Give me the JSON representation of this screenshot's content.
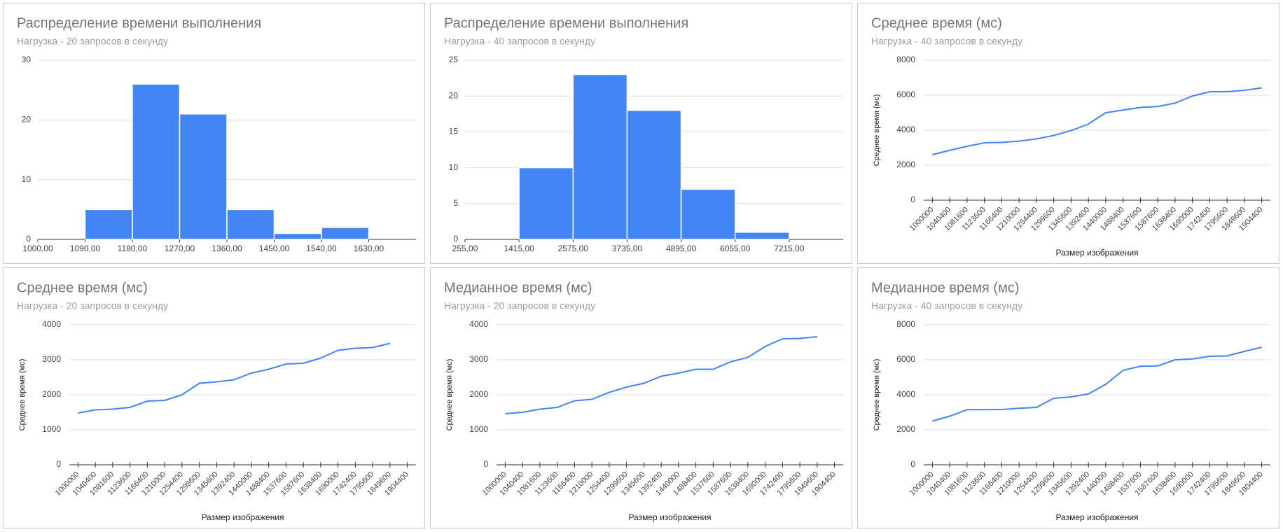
{
  "chart_data": [
    {
      "type": "histogram",
      "title": "Распределение времени выполнения",
      "subtitle": "Нагрузка - 20 запросов в секунду",
      "bins": [
        1090,
        1180,
        1270,
        1360,
        1450,
        1540,
        1630
      ],
      "counts": [
        5,
        26,
        21,
        5,
        1,
        2
      ],
      "color": "#4285f4",
      "xlim": [
        1000,
        1720
      ],
      "xticks": [
        {
          "value": 1000,
          "label": "1000,00"
        },
        {
          "value": 1090,
          "label": "1090,00"
        },
        {
          "value": 1180,
          "label": "1180,00"
        },
        {
          "value": 1270,
          "label": "1270,00"
        },
        {
          "value": 1360,
          "label": "1360,00"
        },
        {
          "value": 1450,
          "label": "1450,00"
        },
        {
          "value": 1540,
          "label": "1540,00"
        },
        {
          "value": 1630,
          "label": "1630,00"
        }
      ],
      "ylim": [
        0,
        30
      ],
      "yticks": [
        0,
        10,
        20,
        30
      ],
      "grid": true
    },
    {
      "type": "histogram",
      "title": "Распределение времени выполнения",
      "subtitle": "Нагрузка - 40 запросов в секунду",
      "bins": [
        1415,
        2575,
        3735,
        4895,
        6055,
        7215
      ],
      "counts": [
        10,
        23,
        18,
        7,
        1
      ],
      "color": "#4285f4",
      "xlim": [
        255,
        8375
      ],
      "xticks": [
        {
          "value": 255,
          "label": "255,00"
        },
        {
          "value": 1415,
          "label": "1415,00"
        },
        {
          "value": 2575,
          "label": "2575,00"
        },
        {
          "value": 3735,
          "label": "3735,00"
        },
        {
          "value": 4895,
          "label": "4895,00"
        },
        {
          "value": 6055,
          "label": "6055,00"
        },
        {
          "value": 7215,
          "label": "7215,00"
        }
      ],
      "ylim": [
        0,
        25
      ],
      "yticks": [
        0,
        5,
        10,
        15,
        20,
        25
      ],
      "grid": true
    },
    {
      "type": "line",
      "title": "Среднее время (мс)",
      "subtitle": "Нагрузка - 40 запросов в секунду",
      "y_label": "Среднее время (мс)",
      "x_label": "Размер изображения",
      "categories": [
        "1000000",
        "1040400",
        "1081600",
        "1123600",
        "1166400",
        "1210000",
        "1254400",
        "1299600",
        "1345600",
        "1392400",
        "1440000",
        "1488400",
        "1537600",
        "1587600",
        "1638400",
        "1690000",
        "1742400",
        "1795600",
        "1849600",
        "1904400"
      ],
      "values": [
        2600,
        2850,
        3080,
        3280,
        3300,
        3380,
        3500,
        3700,
        3980,
        4350,
        5000,
        5150,
        5300,
        5350,
        5550,
        5950,
        6200,
        6200,
        6280,
        6420
      ],
      "color": "#4285f4",
      "ylim": [
        0,
        8000
      ],
      "yticks": [
        0,
        2000,
        4000,
        6000,
        8000
      ],
      "grid": true
    },
    {
      "type": "line",
      "title": "Среднее время (мс)",
      "subtitle": "Нагрузка - 20 запросов в секунду",
      "y_label": "Среднее время (мс)",
      "x_label": "Размер изображения",
      "categories": [
        "1000000",
        "1040400",
        "1081600",
        "1123600",
        "1166400",
        "1210000",
        "1254400",
        "1299600",
        "1345600",
        "1392400",
        "1440000",
        "1488400",
        "1537600",
        "1587600",
        "1638400",
        "1690000",
        "1742400",
        "1795600",
        "1849600",
        "1904400"
      ],
      "values": [
        1480,
        1570,
        1590,
        1640,
        1820,
        1840,
        2000,
        2330,
        2370,
        2430,
        2620,
        2730,
        2880,
        2900,
        3050,
        3270,
        3330,
        3350,
        3470,
        null
      ],
      "color": "#4285f4",
      "ylim": [
        0,
        4000
      ],
      "yticks": [
        0,
        1000,
        2000,
        3000,
        4000
      ],
      "grid": true
    },
    {
      "type": "line",
      "title": "Медианное время (мс)",
      "subtitle": "Нагрузка - 20 запросов в секунду",
      "y_label": "Среднее время (мс)",
      "x_label": "Размер изображения",
      "categories": [
        "1000000",
        "1040400",
        "1081600",
        "1123600",
        "1166400",
        "1210000",
        "1254400",
        "1299600",
        "1345600",
        "1392400",
        "1440000",
        "1488400",
        "1537600",
        "1587600",
        "1638400",
        "1690000",
        "1742400",
        "1795600",
        "1849600",
        "1904400"
      ],
      "values": [
        1460,
        1500,
        1590,
        1640,
        1830,
        1870,
        2070,
        2220,
        2330,
        2530,
        2620,
        2730,
        2730,
        2940,
        3070,
        3380,
        3600,
        3610,
        3660,
        null
      ],
      "color": "#4285f4",
      "ylim": [
        0,
        4000
      ],
      "yticks": [
        0,
        1000,
        2000,
        3000,
        4000
      ],
      "grid": true
    },
    {
      "type": "line",
      "title": "Медианное время (мс)",
      "subtitle": "Нагрузка - 40 запросов в секунду",
      "y_label": "Среднее время (мс)",
      "x_label": "Размер изображения",
      "categories": [
        "1000000",
        "1040400",
        "1081600",
        "1123600",
        "1166400",
        "1210000",
        "1254400",
        "1299600",
        "1345600",
        "1392400",
        "1440000",
        "1488400",
        "1537600",
        "1587600",
        "1638400",
        "1690000",
        "1742400",
        "1795600",
        "1849600",
        "1904400"
      ],
      "values": [
        2500,
        2780,
        3150,
        3150,
        3160,
        3230,
        3280,
        3800,
        3880,
        4050,
        4600,
        5400,
        5630,
        5650,
        6000,
        6050,
        6200,
        6220,
        6480,
        6720
      ],
      "color": "#4285f4",
      "ylim": [
        0,
        8000
      ],
      "yticks": [
        0,
        2000,
        4000,
        6000,
        8000
      ],
      "grid": true
    }
  ]
}
